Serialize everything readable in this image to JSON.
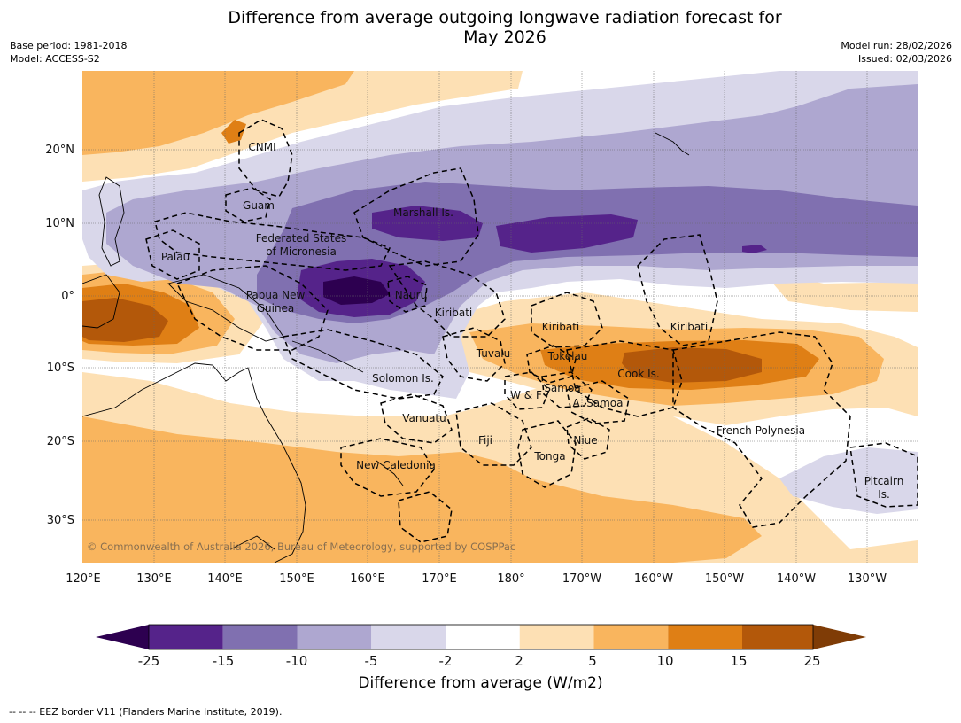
{
  "title_line1": "Difference from average outgoing longwave radiation forecast for",
  "title_line2": "May 2026",
  "base_period": "Base period: 1981-2018",
  "model": "Model: ACCESS-S2",
  "model_run": "Model run: 28/02/2026",
  "issued": "Issued: 02/03/2026",
  "lat_labels": [
    "20°N",
    "10°N",
    "0°",
    "10°S",
    "20°S",
    "30°S"
  ],
  "lon_labels": [
    "120°E",
    "130°E",
    "140°E",
    "150°E",
    "160°E",
    "170°E",
    "180°",
    "170°W",
    "160°W",
    "150°W",
    "140°W",
    "130°W"
  ],
  "places": [
    {
      "id": "cnmi",
      "text": "CNMI"
    },
    {
      "id": "guam",
      "text": "Guam"
    },
    {
      "id": "marshall",
      "text": "Marshall Is."
    },
    {
      "id": "fsm1",
      "text": "Federated States"
    },
    {
      "id": "fsm2",
      "text": "of Micronesia"
    },
    {
      "id": "palau",
      "text": "Palau"
    },
    {
      "id": "png1",
      "text": "Papua New"
    },
    {
      "id": "png2",
      "text": "Guinea"
    },
    {
      "id": "nauru",
      "text": "Nauru"
    },
    {
      "id": "kiribati1",
      "text": "Kiribati"
    },
    {
      "id": "kiribati2",
      "text": "Kiribati"
    },
    {
      "id": "kiribati3",
      "text": "Kiribati"
    },
    {
      "id": "tuvalu",
      "text": "Tuvalu"
    },
    {
      "id": "tokelau",
      "text": "Tokelau"
    },
    {
      "id": "cook",
      "text": "Cook Is."
    },
    {
      "id": "solomon",
      "text": "Solomon Is."
    },
    {
      "id": "wf",
      "text": "W & F"
    },
    {
      "id": "samoa",
      "text": "Samoa"
    },
    {
      "id": "asamoa",
      "text": "A. Samoa"
    },
    {
      "id": "vanuatu",
      "text": "Vanuatu"
    },
    {
      "id": "fiji",
      "text": "Fiji"
    },
    {
      "id": "niue",
      "text": "Niue"
    },
    {
      "id": "tonga",
      "text": "Tonga"
    },
    {
      "id": "frpoly",
      "text": "French Polynesia"
    },
    {
      "id": "newcal",
      "text": "New Caledonia"
    },
    {
      "id": "pitcairn1",
      "text": "Pitcairn"
    },
    {
      "id": "pitcairn2",
      "text": "Is."
    }
  ],
  "copyright": "© Commonwealth of Australia 2026, Bureau of Meteorology, supported by COSPPac",
  "colorbar": {
    "ticks": [
      "-25",
      "-15",
      "-10",
      "-5",
      "-2",
      "2",
      "5",
      "10",
      "15",
      "25"
    ],
    "colors": [
      "#2d0050",
      "#55238a",
      "#8070b0",
      "#aea7d0",
      "#d9d7ea",
      "#ffffff",
      "#fde0b4",
      "#f9b55e",
      "#df7f15",
      "#b3580a",
      "#7f3c06"
    ],
    "label": "Difference from average (W/m2)"
  },
  "footnote": "-- -- -- EEZ border V11 (Flanders Marine Institute, 2019)."
}
